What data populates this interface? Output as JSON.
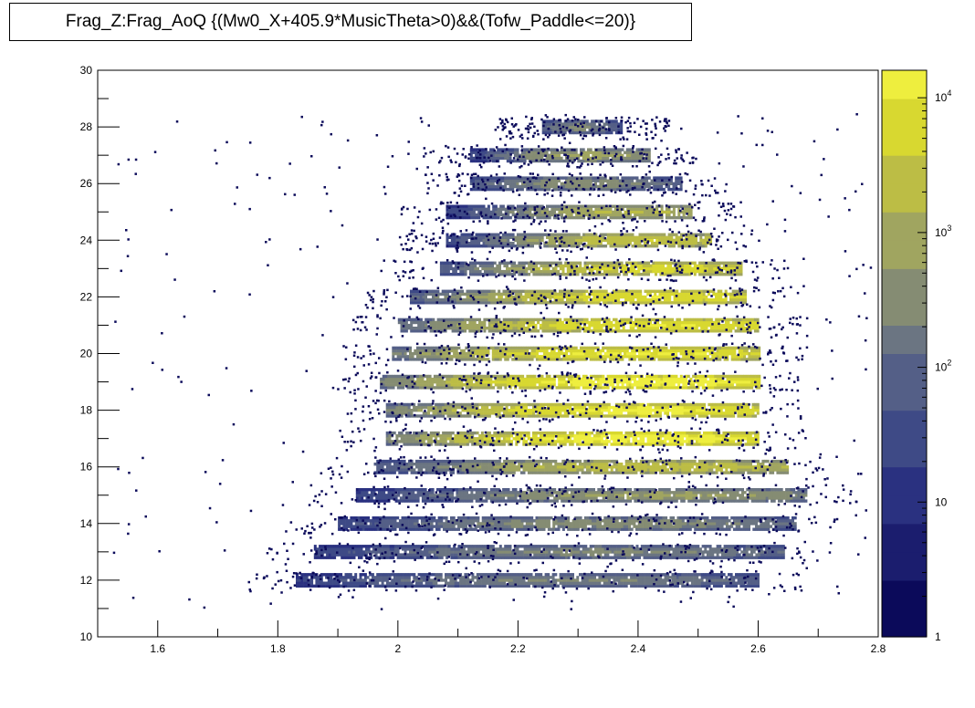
{
  "chart_data": {
    "type": "heatmap",
    "title": "Frag_Z:Frag_AoQ {(Mw0_X+405.9*MusicTheta>0)&&(Tofw_Paddle<=20)}",
    "xlabel": "",
    "ylabel": "",
    "xlim": [
      1.5,
      2.8
    ],
    "ylim": [
      10,
      30
    ],
    "x_ticks": [
      "1.6",
      "1.8",
      "2",
      "2.2",
      "2.4",
      "2.6",
      "2.8"
    ],
    "x_tick_values": [
      1.6,
      1.8,
      2.0,
      2.2,
      2.4,
      2.6,
      2.8
    ],
    "y_ticks": [
      "10",
      "12",
      "14",
      "16",
      "18",
      "20",
      "22",
      "24",
      "26",
      "28",
      "30"
    ],
    "y_tick_values": [
      10,
      12,
      14,
      16,
      18,
      20,
      22,
      24,
      26,
      28,
      30
    ],
    "z_scale": "log",
    "zlim": [
      1,
      16000
    ],
    "colorbar_ticks": [
      {
        "value": 1,
        "label": "1"
      },
      {
        "value": 10,
        "label": "10"
      },
      {
        "value": 100,
        "label": "10",
        "exp": "2"
      },
      {
        "value": 1000,
        "label": "10",
        "exp": "3"
      },
      {
        "value": 10000,
        "label": "10",
        "exp": "4"
      }
    ],
    "colormap": [
      "#0b0a5a",
      "#1b1d6e",
      "#2a3180",
      "#3e4a86",
      "#545f87",
      "#6b7582",
      "#858c73",
      "#a0a560",
      "#bcbd45",
      "#d8d830",
      "#eeee3e"
    ],
    "bands": [
      {
        "z": 12,
        "aoq_min": 1.83,
        "aoq_max": 2.6,
        "peak_aoq": 2.28,
        "peak_count": 250
      },
      {
        "z": 13,
        "aoq_min": 1.86,
        "aoq_max": 2.64,
        "peak_aoq": 2.33,
        "peak_count": 300
      },
      {
        "z": 14,
        "aoq_min": 1.9,
        "aoq_max": 2.66,
        "peak_aoq": 2.35,
        "peak_count": 400
      },
      {
        "z": 15,
        "aoq_min": 1.93,
        "aoq_max": 2.68,
        "peak_aoq": 2.43,
        "peak_count": 700
      },
      {
        "z": 16,
        "aoq_min": 1.96,
        "aoq_max": 2.65,
        "peak_aoq": 2.44,
        "peak_count": 2500
      },
      {
        "z": 17,
        "aoq_min": 1.98,
        "aoq_max": 2.6,
        "peak_aoq": 2.41,
        "peak_count": 14000
      },
      {
        "z": 18,
        "aoq_min": 1.98,
        "aoq_max": 2.6,
        "peak_aoq": 2.41,
        "peak_count": 11000
      },
      {
        "z": 19,
        "aoq_min": 1.97,
        "aoq_max": 2.6,
        "peak_aoq": 2.41,
        "peak_count": 15000
      },
      {
        "z": 20,
        "aoq_min": 1.99,
        "aoq_max": 2.6,
        "peak_aoq": 2.4,
        "peak_count": 9000
      },
      {
        "z": 21,
        "aoq_min": 2.0,
        "aoq_max": 2.6,
        "peak_aoq": 2.43,
        "peak_count": 8000
      },
      {
        "z": 22,
        "aoq_min": 2.02,
        "aoq_max": 2.58,
        "peak_aoq": 2.43,
        "peak_count": 7000
      },
      {
        "z": 23,
        "aoq_min": 2.07,
        "aoq_max": 2.57,
        "peak_aoq": 2.44,
        "peak_count": 5000
      },
      {
        "z": 24,
        "aoq_min": 2.08,
        "aoq_max": 2.52,
        "peak_aoq": 2.42,
        "peak_count": 3000
      },
      {
        "z": 25,
        "aoq_min": 2.08,
        "aoq_max": 2.49,
        "peak_aoq": 2.39,
        "peak_count": 1500
      },
      {
        "z": 26,
        "aoq_min": 2.12,
        "aoq_max": 2.47,
        "peak_aoq": 2.3,
        "peak_count": 400
      },
      {
        "z": 27,
        "aoq_min": 2.12,
        "aoq_max": 2.42,
        "peak_aoq": 2.32,
        "peak_count": 800
      },
      {
        "z": 28,
        "aoq_min": 2.24,
        "aoq_max": 2.37,
        "peak_aoq": 2.3,
        "peak_count": 300
      }
    ]
  }
}
